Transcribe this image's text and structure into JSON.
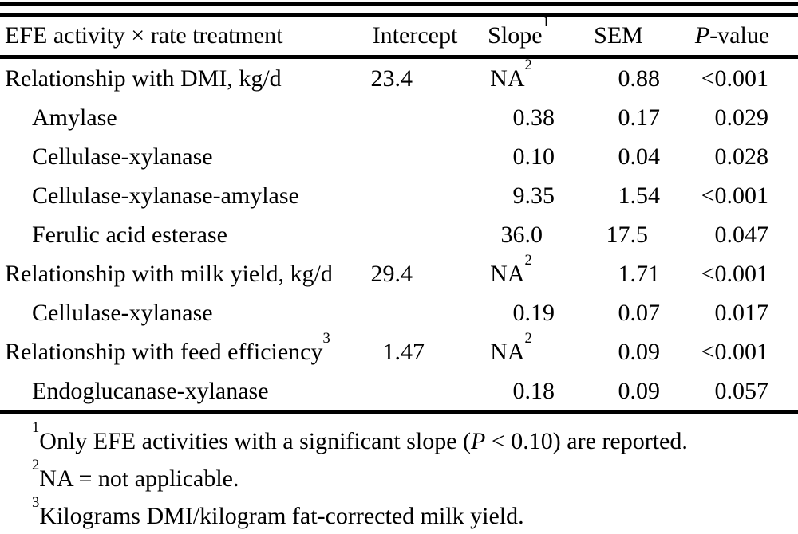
{
  "colors": {
    "text": "#000000",
    "background": "#ffffff",
    "rule": "#000000"
  },
  "table": {
    "col1_header": "EFE activity × rate treatment",
    "headers": [
      {
        "italic": "",
        "label": "Intercept",
        "sup": ""
      },
      {
        "italic": "",
        "label": "Slope",
        "sup": "1"
      },
      {
        "italic": "",
        "label": "SEM",
        "sup": ""
      },
      {
        "italic": "P",
        "label": "-value",
        "sup": ""
      }
    ],
    "rows": [
      {
        "label": "Relationship with DMI, kg/d",
        "sup": "",
        "indent": false,
        "intercept": "23.4",
        "slope": "NA",
        "slope_sup": "2",
        "sem": "0.88",
        "p": "<0.001"
      },
      {
        "label": "Amylase",
        "sup": "",
        "indent": true,
        "intercept": "",
        "slope": "0.38",
        "slope_sup": "",
        "sem": "0.17",
        "p": "0.029"
      },
      {
        "label": "Cellulase-xylanase",
        "sup": "",
        "indent": true,
        "intercept": "",
        "slope": "0.10",
        "slope_sup": "",
        "sem": "0.04",
        "p": "0.028"
      },
      {
        "label": "Cellulase-xylanase-amylase",
        "sup": "",
        "indent": true,
        "intercept": "",
        "slope": "9.35",
        "slope_sup": "",
        "sem": "1.54",
        "p": "<0.001"
      },
      {
        "label": "Ferulic acid esterase",
        "sup": "",
        "indent": true,
        "intercept": "",
        "slope": "36.0",
        "slope_sup": "",
        "sem": "17.5",
        "p": "0.047"
      },
      {
        "label": "Relationship with milk yield, kg/d",
        "sup": "",
        "indent": false,
        "intercept": "29.4",
        "slope": "NA",
        "slope_sup": "2",
        "sem": "1.71",
        "p": "<0.001"
      },
      {
        "label": "Cellulase-xylanase",
        "sup": "",
        "indent": true,
        "intercept": "",
        "slope": "0.19",
        "slope_sup": "",
        "sem": "0.07",
        "p": "0.017"
      },
      {
        "label": "Relationship with feed efficiency",
        "sup": "3",
        "indent": false,
        "intercept": "1.47",
        "slope": "NA",
        "slope_sup": "2",
        "sem": "0.09",
        "p": "<0.001"
      },
      {
        "label": "Endoglucanase-xylanase",
        "sup": "",
        "indent": true,
        "intercept": "",
        "slope": "0.18",
        "slope_sup": "",
        "sem": "0.09",
        "p": "0.057"
      }
    ],
    "footnotes": [
      {
        "sup": "1",
        "segments": [
          {
            "text": "Only EFE activities with a significant slope (",
            "italic": false
          },
          {
            "text": "P",
            "italic": true
          },
          {
            "text": " < 0.10) are reported.",
            "italic": false
          }
        ]
      },
      {
        "sup": "2",
        "segments": [
          {
            "text": "NA = not applicable.",
            "italic": false
          }
        ]
      },
      {
        "sup": "3",
        "segments": [
          {
            "text": "Kilograms DMI/kilogram fat-corrected milk yield.",
            "italic": false
          }
        ]
      }
    ]
  }
}
